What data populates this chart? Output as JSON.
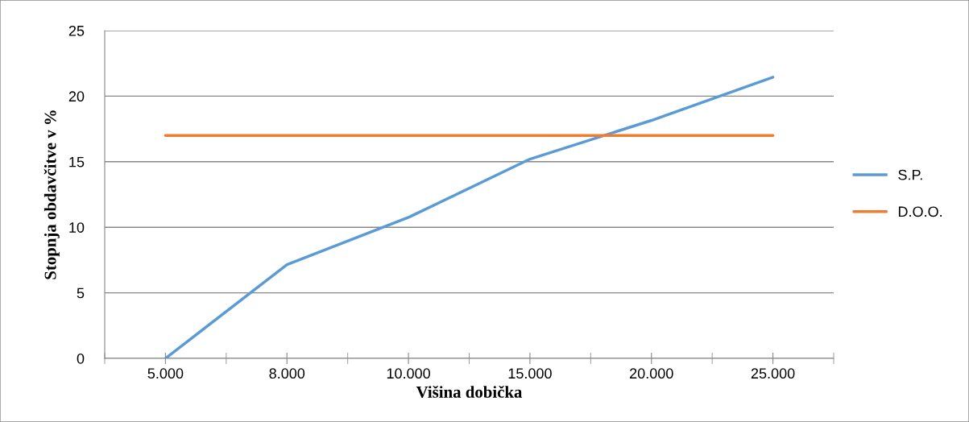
{
  "chart_data": {
    "type": "line",
    "xlabel": "Višina dobička",
    "ylabel": "Stopnja obdavčitve v %",
    "categories": [
      "5.000",
      "8.000",
      "10.000",
      "15.000",
      "20.000",
      "25.000"
    ],
    "series": [
      {
        "name": "S.P.",
        "color": "#5b9bd5",
        "values": [
          0,
          7.15,
          10.75,
          15.2,
          18.15,
          21.45
        ]
      },
      {
        "name": "D.O.O.",
        "color": "#ed7d31",
        "values": [
          17,
          17,
          17,
          17,
          17,
          17
        ]
      }
    ],
    "ylim": [
      0,
      25
    ],
    "yticks": [
      0,
      5,
      10,
      15,
      20,
      25
    ],
    "grid": "y",
    "legend": "right",
    "marker": "none",
    "line_style": "solid"
  }
}
